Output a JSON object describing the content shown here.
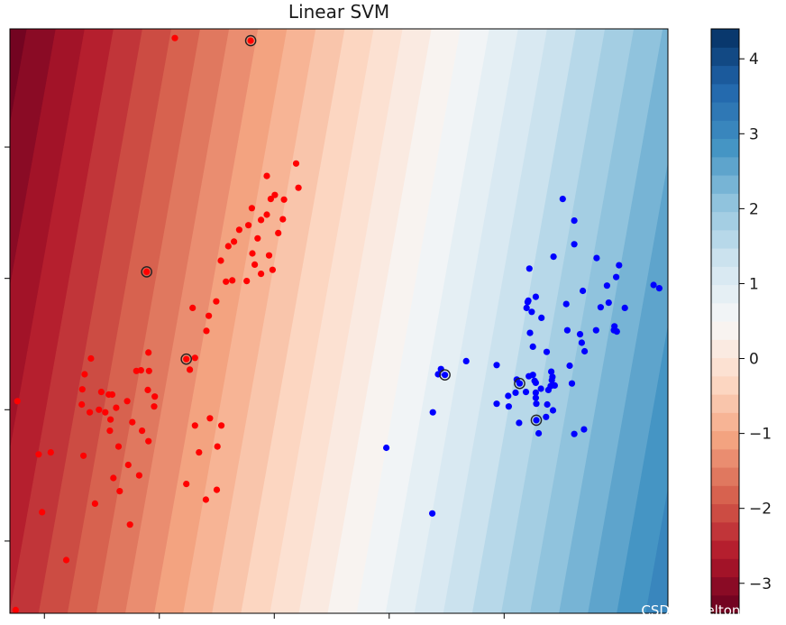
{
  "chart_data": {
    "type": "scatter",
    "title": "Linear SVM",
    "xlabel": "",
    "ylabel": "",
    "colors": {
      "class_0": "#ff0000",
      "class_1": "#0000ff",
      "support_vector_edge": "#222222",
      "colormap": "RdBu"
    },
    "background": {
      "kind": "filled-contour",
      "value_min": -3.4,
      "value_max": 4.4
    },
    "colorbar": {
      "range": [
        -3.4,
        4.4
      ],
      "ticks": [
        4,
        3,
        2,
        1,
        0,
        -1,
        -2,
        -3
      ],
      "tick_labels": [
        "4",
        "3",
        "2",
        "1",
        "0",
        "−1",
        "−2",
        "−3"
      ]
    },
    "series": [
      {
        "class": 0,
        "color": "#ff0000",
        "points": [
          [
            0.27,
            7.66
          ],
          [
            2.38,
            5.75
          ],
          [
            1.87,
            5.56
          ],
          [
            2.42,
            5.38
          ],
          [
            2.01,
            5.27
          ],
          [
            1.94,
            5.21
          ],
          [
            2.17,
            5.2
          ],
          [
            1.61,
            5.07
          ],
          [
            2.07,
            4.69
          ],
          [
            2.15,
            4.9
          ],
          [
            1.77,
            4.89
          ],
          [
            1.2,
            4.49
          ],
          [
            1.62,
            4.38
          ],
          [
            1.71,
            4.61
          ],
          [
            1.55,
            4.81
          ],
          [
            1.91,
            4.35
          ],
          [
            1.66,
            4.21
          ],
          [
            1.52,
            3.96
          ],
          [
            1.39,
            4.74
          ],
          [
            1.87,
            4.97
          ],
          [
            1.97,
            4.13
          ],
          [
            1.77,
            4.07
          ],
          [
            1.3,
            4.56
          ],
          [
            1.27,
            3.97
          ],
          [
            1.16,
            3.95
          ],
          [
            1.07,
            4.27
          ],
          [
            0.58,
            3.55
          ],
          [
            0.86,
            3.43
          ],
          [
            0.99,
            3.65
          ],
          [
            0.82,
            3.2
          ],
          [
            0.62,
            2.79
          ],
          [
            0.53,
            2.61
          ],
          [
            -0.19,
            2.87
          ],
          [
            -0.2,
            2.3
          ],
          [
            -0.09,
            2.05
          ],
          [
            -0.3,
            1.68
          ],
          [
            -0.86,
            1.68
          ],
          [
            -1.01,
            2.27
          ],
          [
            -1.3,
            2.54
          ],
          [
            -1.19,
            2.78
          ],
          [
            -1.34,
            2.31
          ],
          [
            -1.35,
            2.08
          ],
          [
            -1.21,
            1.96
          ],
          [
            -0.94,
            1.96
          ],
          [
            -0.88,
            2.23
          ],
          [
            -0.4,
            2.59
          ],
          [
            -0.32,
            2.6
          ],
          [
            -0.18,
            2.59
          ],
          [
            -0.08,
            2.2
          ],
          [
            -0.56,
            2.13
          ],
          [
            -0.75,
            2.03
          ],
          [
            -0.82,
            2.23
          ],
          [
            -0.85,
            1.85
          ],
          [
            -0.47,
            1.81
          ],
          [
            -0.19,
            1.52
          ],
          [
            -0.71,
            1.44
          ],
          [
            -0.54,
            1.16
          ],
          [
            -0.35,
            1.0
          ],
          [
            -0.69,
            0.76
          ],
          [
            -0.8,
            0.96
          ],
          [
            -1.05,
            2.0
          ],
          [
            -1.32,
            1.3
          ],
          [
            -1.12,
            0.57
          ],
          [
            -0.51,
            0.25
          ],
          [
            -1.89,
            1.35
          ],
          [
            -2.1,
            1.32
          ],
          [
            -2.47,
            2.13
          ],
          [
            -2.04,
            0.44
          ],
          [
            -1.62,
            -0.29
          ],
          [
            -2.5,
            -1.05
          ],
          [
            0.47,
            0.87
          ],
          [
            1.01,
            1.44
          ],
          [
            1.0,
            0.78
          ],
          [
            0.81,
            0.63
          ],
          [
            0.69,
            1.35
          ],
          [
            1.08,
            1.76
          ],
          [
            0.88,
            1.87
          ],
          [
            0.62,
            1.76
          ]
        ]
      },
      {
        "class": 1,
        "color": "#0000ff",
        "points": [
          [
            6.44,
            4.15
          ],
          [
            6.86,
            4.33
          ],
          [
            6.55,
            3.72
          ],
          [
            7.22,
            4.88
          ],
          [
            7.02,
            5.21
          ],
          [
            7.22,
            4.52
          ],
          [
            7.61,
            4.31
          ],
          [
            7.79,
            3.89
          ],
          [
            8.6,
            3.9
          ],
          [
            8.7,
            3.85
          ],
          [
            7.82,
            3.63
          ],
          [
            7.68,
            3.56
          ],
          [
            7.32,
            3.15
          ],
          [
            7.92,
            3.27
          ],
          [
            7.96,
            3.19
          ],
          [
            7.6,
            3.21
          ],
          [
            7.35,
            3.02
          ],
          [
            7.4,
            2.89
          ],
          [
            7.14,
            2.67
          ],
          [
            7.18,
            2.4
          ],
          [
            6.82,
            2.58
          ],
          [
            6.43,
            2.51
          ],
          [
            6.84,
            2.5
          ],
          [
            6.5,
            2.53
          ],
          [
            6.55,
            2.41
          ],
          [
            6.81,
            2.36
          ],
          [
            6.64,
            2.32
          ],
          [
            6.77,
            2.3
          ],
          [
            6.83,
            2.45
          ],
          [
            6.53,
            2.44
          ],
          [
            6.55,
            2.18
          ],
          [
            6.88,
            2.37
          ],
          [
            6.75,
            2.08
          ],
          [
            6.73,
            1.89
          ],
          [
            6.85,
            1.99
          ],
          [
            6.26,
            1.8
          ],
          [
            6.08,
            2.05
          ],
          [
            6.2,
            2.26
          ],
          [
            6.6,
            1.64
          ],
          [
            7.22,
            1.63
          ],
          [
            7.39,
            1.7
          ],
          [
            6.55,
            2.26
          ],
          [
            7.1,
            3.21
          ],
          [
            7.91,
            3.21
          ],
          [
            5.87,
            2.09
          ],
          [
            6.07,
            2.21
          ],
          [
            7.37,
            3.81
          ],
          [
            8.1,
            3.55
          ],
          [
            8.0,
            4.2
          ],
          [
            7.95,
            4.02
          ],
          [
            6.39,
            3.55
          ],
          [
            6.41,
            3.64
          ],
          [
            6.48,
            3.49
          ],
          [
            6.42,
            3.66
          ],
          [
            6.65,
            3.4
          ],
          [
            7.08,
            3.61
          ],
          [
            6.38,
            2.27
          ],
          [
            6.56,
            2.09
          ],
          [
            4.9,
            2.62
          ],
          [
            5.34,
            2.74
          ],
          [
            4.85,
            2.54
          ],
          [
            6.22,
            2.46
          ],
          [
            5.87,
            2.68
          ],
          [
            6.74,
            2.88
          ],
          [
            6.45,
            3.17
          ],
          [
            6.5,
            2.96
          ],
          [
            3.95,
            1.42
          ],
          [
            4.76,
            1.96
          ],
          [
            4.75,
            0.42
          ]
        ]
      }
    ],
    "support_vectors": [
      [
        1.59,
        7.62
      ],
      [
        -0.22,
        4.1
      ],
      [
        0.47,
        2.77
      ],
      [
        4.97,
        2.53
      ],
      [
        6.27,
        2.4
      ],
      [
        6.56,
        1.84
      ]
    ],
    "watermark": "CSDN @helton_yann"
  }
}
